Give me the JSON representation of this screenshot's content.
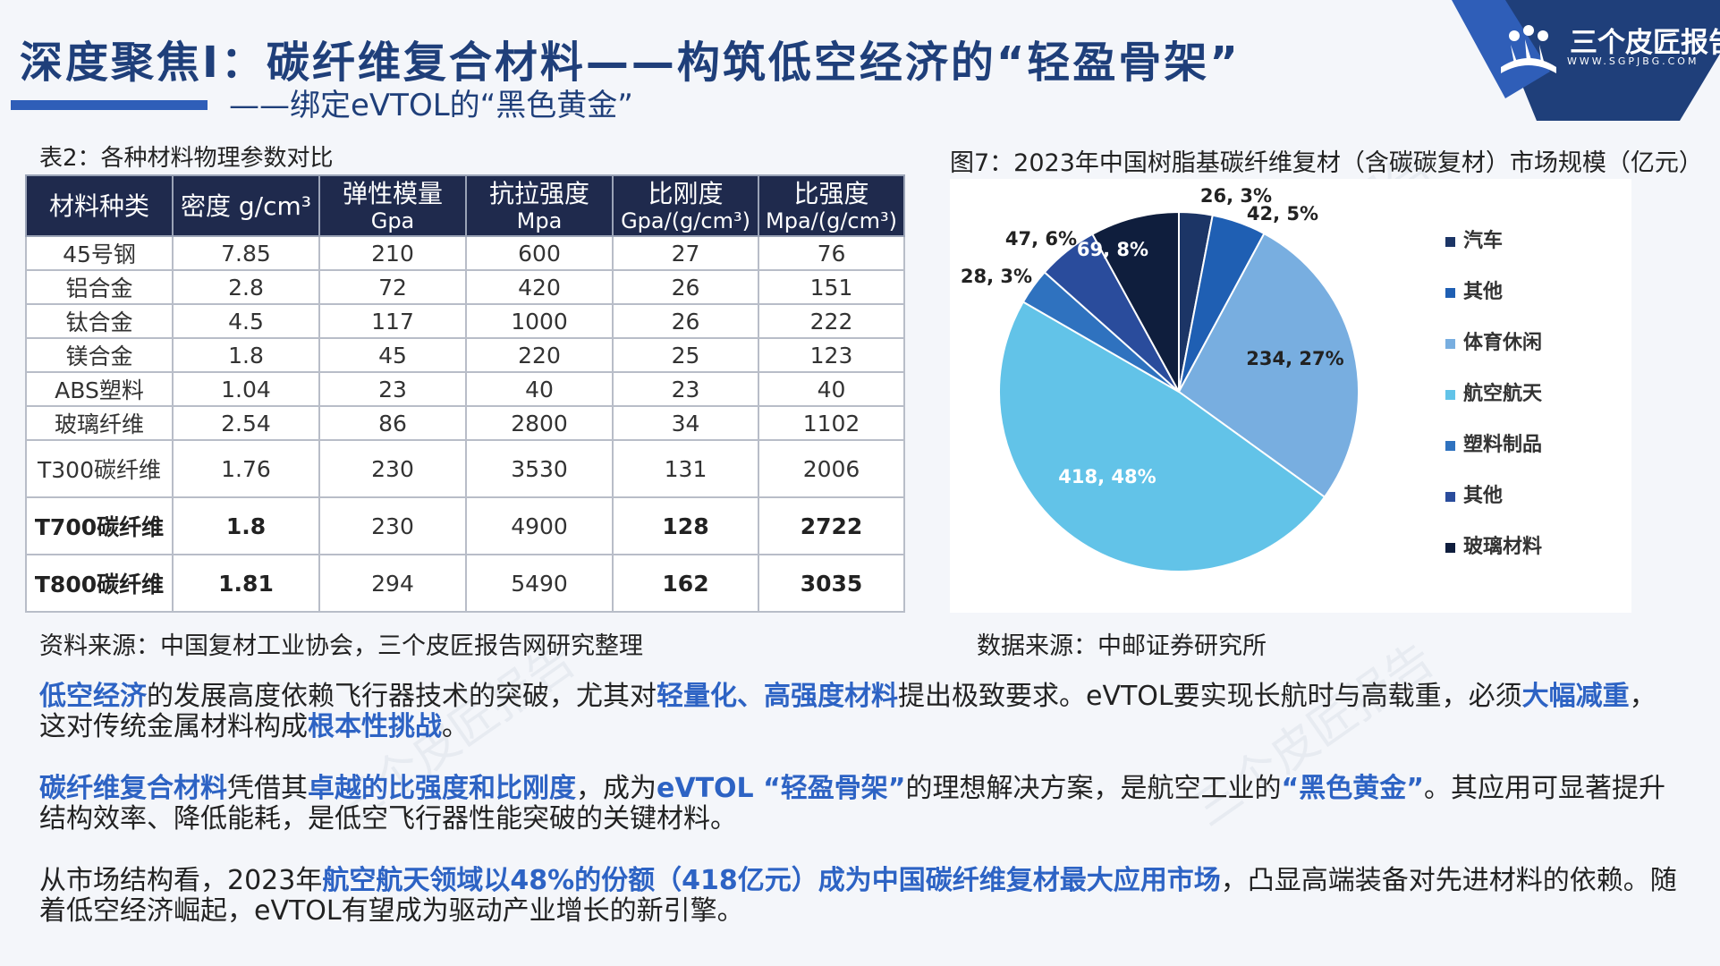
{
  "header": {
    "title": "深度聚焦I：碳纤维复合材料——构筑低空经济的“轻盈骨架”",
    "subtitle": "——绑定eVTOL的“黑色黄金”",
    "logo_text": "三个皮匠报告",
    "logo_url": "WWW.SGPJBG.COM"
  },
  "watermark": "三个皮匠报告",
  "table": {
    "caption": "表2：各种材料物理参数对比",
    "headers": [
      {
        "label": "材料种类",
        "unit": ""
      },
      {
        "label": "密度 g/cm³",
        "unit": ""
      },
      {
        "label": "弹性模量",
        "unit": "Gpa"
      },
      {
        "label": "抗拉强度",
        "unit": "Mpa"
      },
      {
        "label": "比刚度",
        "unit": "Gpa/(g/cm³)"
      },
      {
        "label": "比强度",
        "unit": "Mpa/(g/cm³)"
      }
    ],
    "rows": [
      [
        "45号钢",
        "7.85",
        "210",
        "600",
        "27",
        "76"
      ],
      [
        "铝合金",
        "2.8",
        "72",
        "420",
        "26",
        "151"
      ],
      [
        "钛合金",
        "4.5",
        "117",
        "1000",
        "26",
        "222"
      ],
      [
        "镁合金",
        "1.8",
        "45",
        "220",
        "25",
        "123"
      ],
      [
        "ABS塑料",
        "1.04",
        "23",
        "40",
        "23",
        "40"
      ],
      [
        "玻璃纤维",
        "2.54",
        "86",
        "2800",
        "34",
        "1102"
      ],
      [
        "T300碳纤维",
        "1.76",
        "230",
        "3530",
        "131",
        "2006"
      ],
      [
        "T700碳纤维",
        "1.8",
        "230",
        "4900",
        "128",
        "2722"
      ],
      [
        "T800碳纤维",
        "1.81",
        "294",
        "5490",
        "162",
        "3035"
      ]
    ],
    "source": "资料来源：中国复材工业协会，三个皮匠报告网研究整理"
  },
  "chart_data": {
    "type": "pie",
    "title": "图7：2023年中国树脂基碳纤维复材（含碳碳复材）市场规模（亿元）",
    "categories": [
      "汽车",
      "其他",
      "体育休闲",
      "航空航天",
      "塑料制品",
      "其他",
      "玻璃材料"
    ],
    "values": [
      26,
      42,
      234,
      418,
      28,
      47,
      69
    ],
    "percents": [
      "3%",
      "5%",
      "27%",
      "48%",
      "3%",
      "6%",
      "8%"
    ],
    "data_labels": [
      "26, 3%",
      "42, 5%",
      "234, 27%",
      "418, 48%",
      "28, 3%",
      "47, 6%",
      "69, 8%"
    ],
    "colors": [
      "#1c3566",
      "#1f5fb3",
      "#78aee0",
      "#62c3e8",
      "#2f72bf",
      "#2a4c9c",
      "#0f1e3d"
    ],
    "legend_position": "right",
    "source": "数据来源：中邮证券研究所"
  },
  "body": {
    "p1": [
      {
        "t": "低空经济",
        "h": true
      },
      {
        "t": "的发展高度依赖飞行器技术的突破，尤其对",
        "h": false
      },
      {
        "t": "轻量化、高强度材料",
        "h": true
      },
      {
        "t": "提出极致要求。eVTOL要实现长航时与高载重，必须",
        "h": false
      },
      {
        "t": "大幅减重",
        "h": true
      },
      {
        "t": "，这对传统金属材料构成",
        "h": false
      },
      {
        "t": "根本性挑战",
        "h": true
      },
      {
        "t": "。",
        "h": false
      }
    ],
    "p2": [
      {
        "t": "碳纤维复合材料",
        "h": true
      },
      {
        "t": "凭借其",
        "h": false
      },
      {
        "t": "卓越的比强度和比刚度",
        "h": true
      },
      {
        "t": "，成为",
        "h": false
      },
      {
        "t": "eVTOL “轻盈骨架”",
        "h": true
      },
      {
        "t": "的理想解决方案，是航空工业的",
        "h": false
      },
      {
        "t": "“黑色黄金”",
        "h": true
      },
      {
        "t": "。其应用可显著提升结构效率、降低能耗，是低空飞行器性能突破的关键材料。",
        "h": false
      }
    ],
    "p3": [
      {
        "t": "从市场结构看，2023年",
        "h": false
      },
      {
        "t": "航空航天领域以48%的份额（418亿元）成为中国碳纤维复材最大应用市场",
        "h": true
      },
      {
        "t": "，凸显高端装备对先进材料的依赖。随着低空经济崛起，eVTOL有望成为驱动产业增长的新引擎。",
        "h": false
      }
    ]
  }
}
